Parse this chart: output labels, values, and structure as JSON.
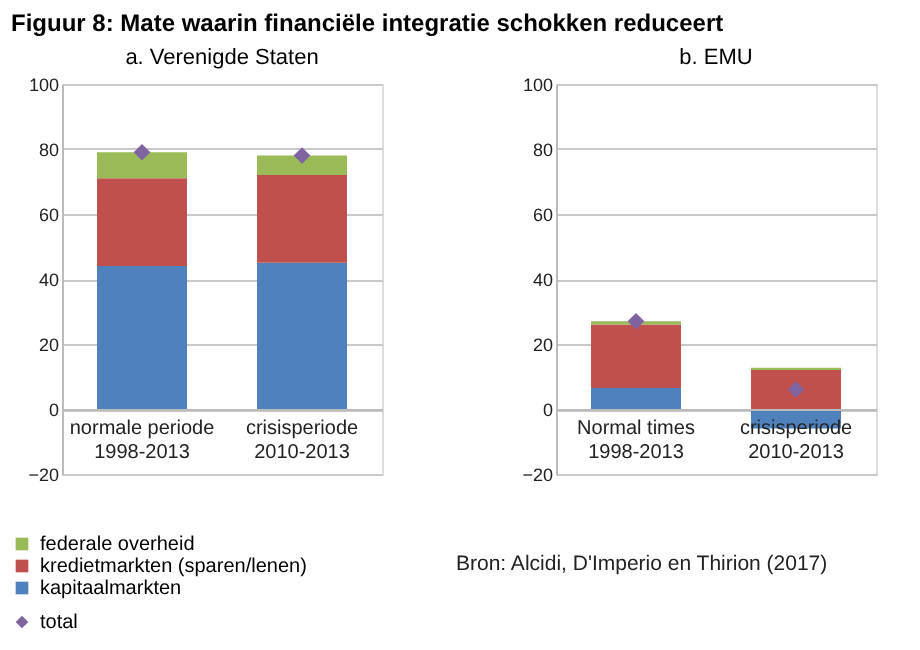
{
  "chart_data": [
    {
      "type": "bar",
      "title": "a. Verenigde Staten",
      "annotations": [
        "Figuur 8: Mate waarin financiële integratie schokken reduceert"
      ],
      "categories": [
        "normale periode\n1998-2013",
        "crisisperiode\n2010-2013"
      ],
      "stacked": true,
      "ylim": [
        -20,
        100
      ],
      "yticks": [
        -20,
        0,
        20,
        40,
        60,
        80,
        100
      ],
      "grid": "y",
      "legend": "bottom left",
      "series": [
        {
          "name": "kapitaalmarkten",
          "color": "#4f81bd",
          "values": [
            44,
            45
          ]
        },
        {
          "name": "kredietmarkten (sparen/lenen)",
          "color": "#c0504d",
          "values": [
            27,
            27
          ]
        },
        {
          "name": "federale overheid",
          "color": "#9bbb59",
          "values": [
            8,
            6
          ]
        },
        {
          "name": "total",
          "type": "scatter",
          "marker": "diamond",
          "color": "#8064a2",
          "values": [
            79,
            78
          ]
        }
      ]
    },
    {
      "type": "bar",
      "title": "b. EMU",
      "annotations": [
        "Bron: Alcidi, D'Imperio en Thirion (2017)"
      ],
      "categories": [
        "Normal times\n1998-2013",
        "crisisperiode\n2010-2013"
      ],
      "stacked": true,
      "ylim": [
        -20,
        100
      ],
      "yticks": [
        -20,
        0,
        20,
        40,
        60,
        80,
        100
      ],
      "grid": "y",
      "legend": false,
      "series": [
        {
          "color": "#4f81bd",
          "values": [
            6.5,
            -6
          ]
        },
        {
          "color": "#c0504d",
          "values": [
            19.5,
            12
          ]
        },
        {
          "color": "#9bbb59",
          "values": [
            1,
            0.7
          ]
        },
        {
          "type": "scatter",
          "marker": "diamond",
          "color": "#8064a2",
          "values": [
            27,
            6
          ]
        }
      ]
    }
  ]
}
